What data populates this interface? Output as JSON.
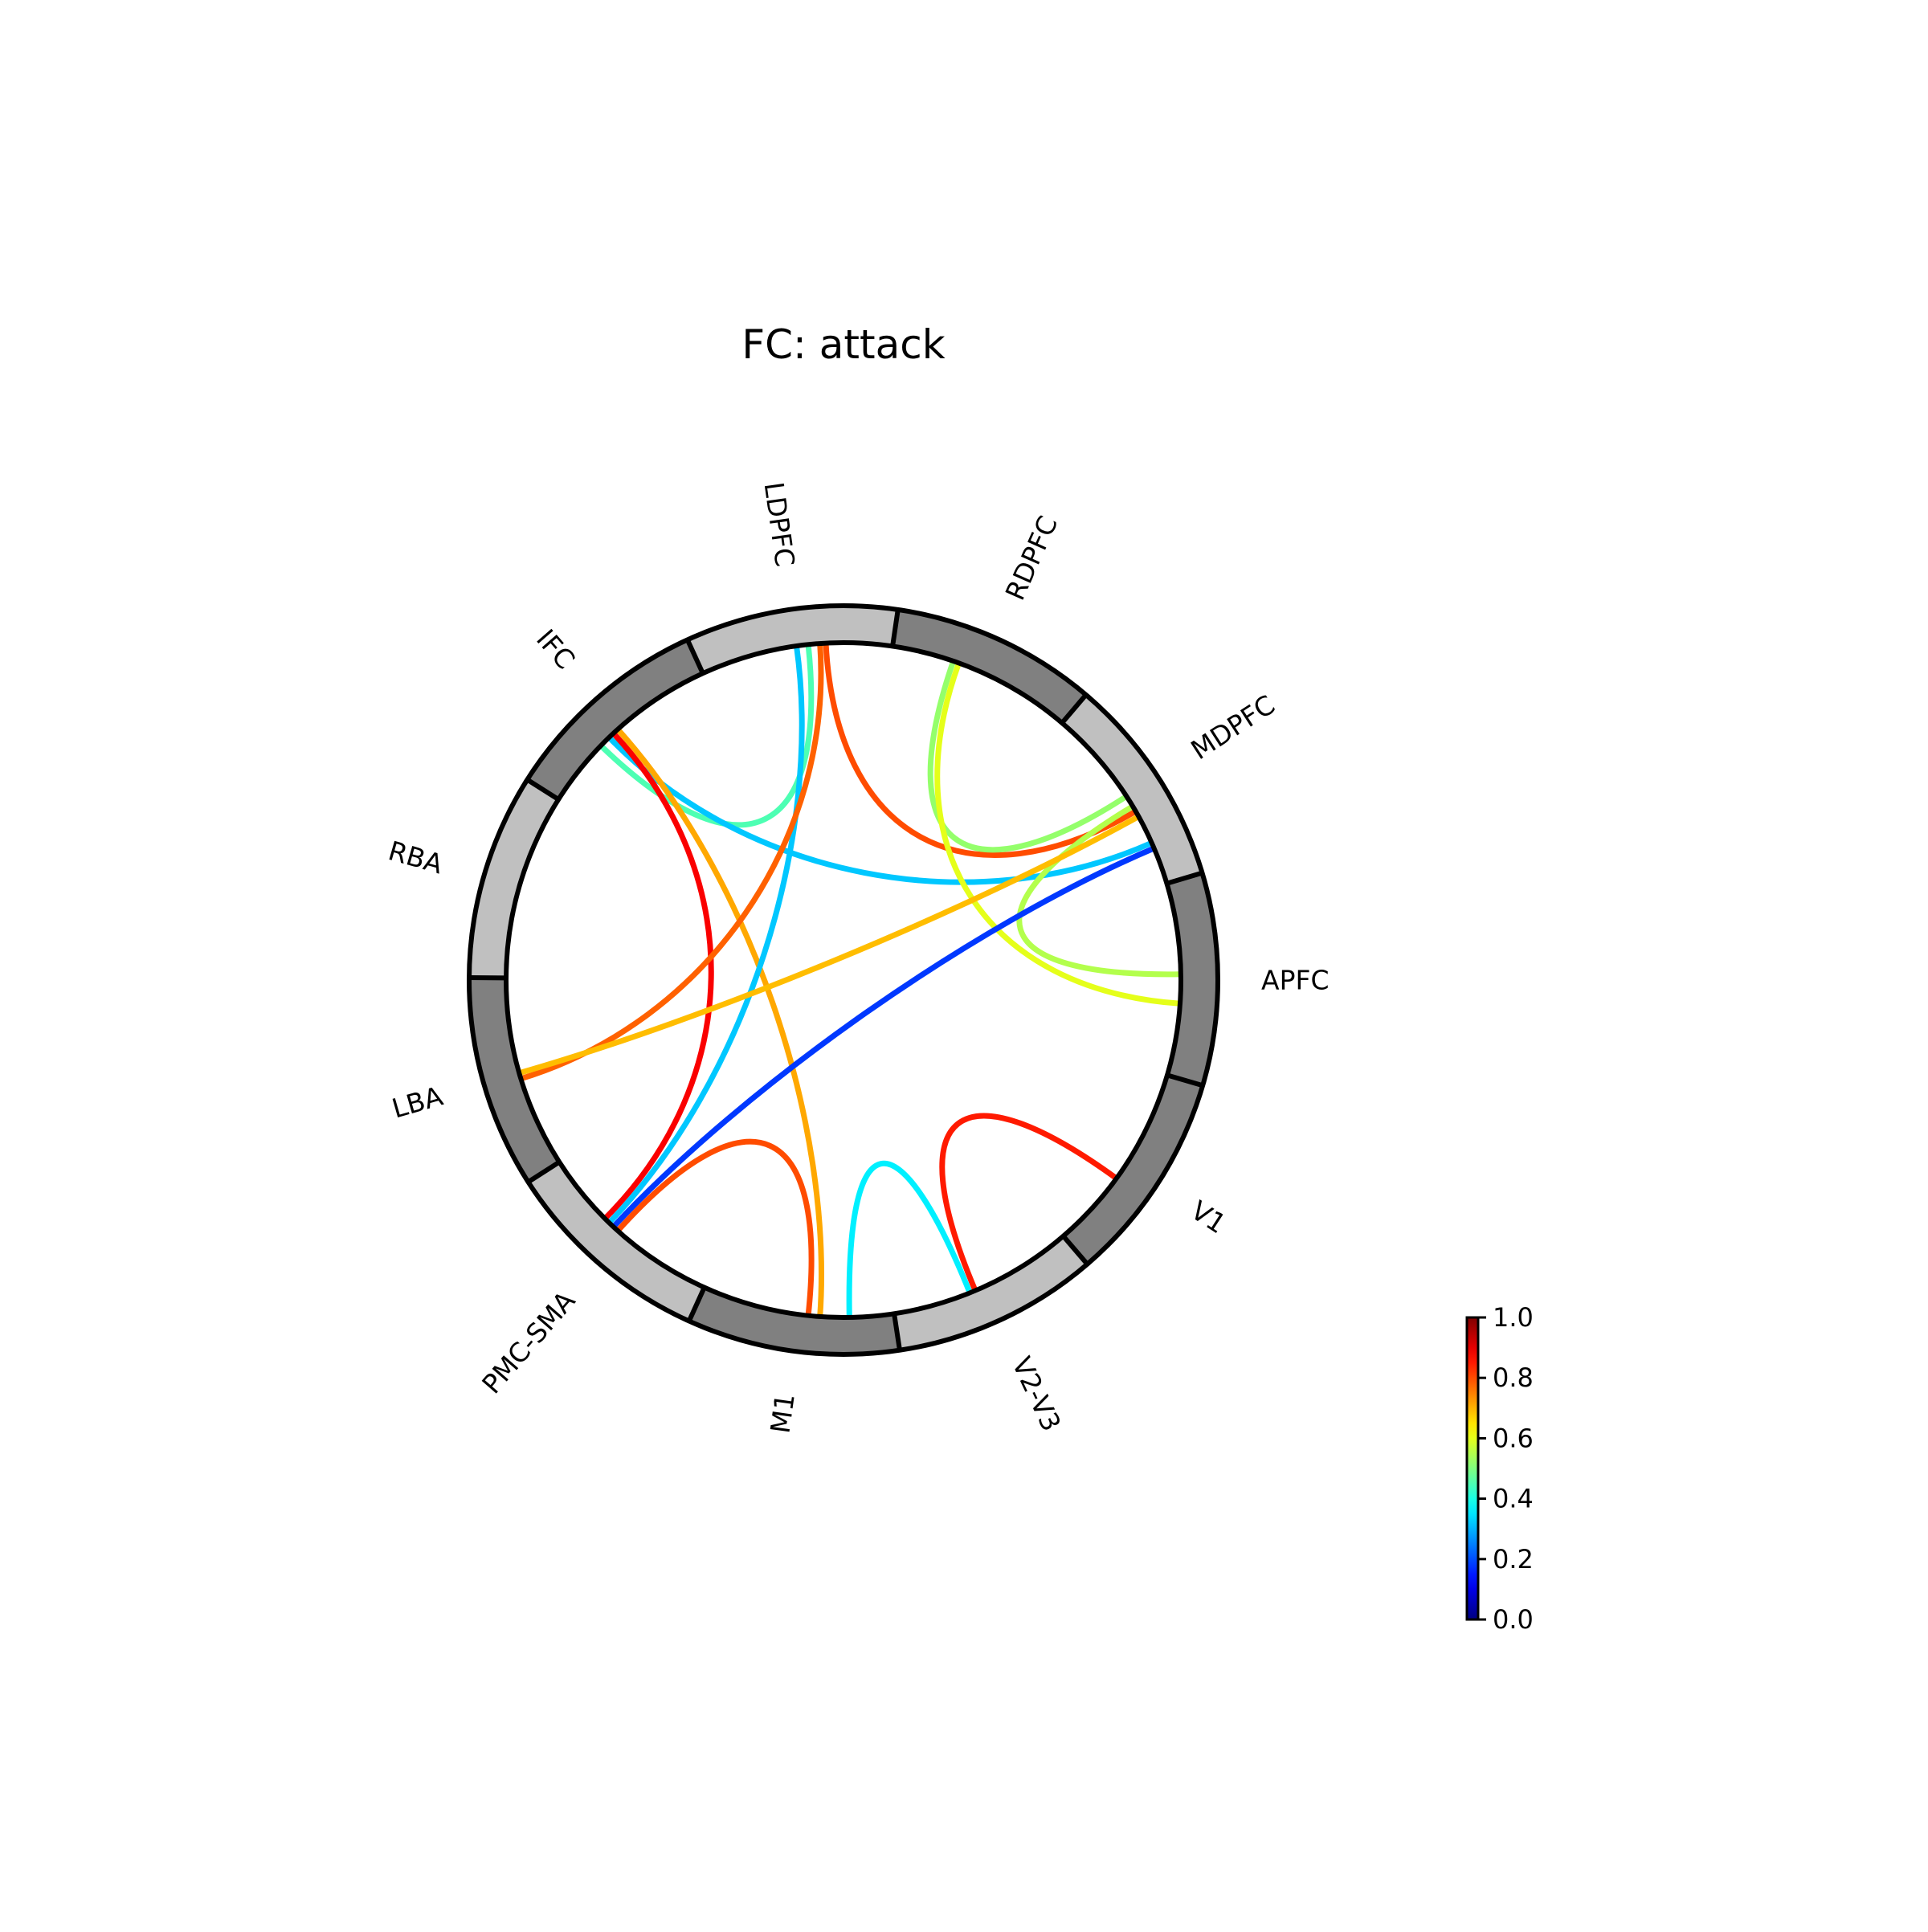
{
  "chart_data": {
    "type": "chord",
    "title": "FC: attack",
    "nodes": [
      {
        "name": "APFC",
        "angle": 0,
        "shade": "#808080"
      },
      {
        "name": "MDPFC",
        "angle": 33,
        "shade": "#c0c0c0"
      },
      {
        "name": "RDPFC",
        "angle": 66,
        "shade": "#808080"
      },
      {
        "name": "LDPFC",
        "angle": 98,
        "shade": "#c0c0c0"
      },
      {
        "name": "IFC",
        "angle": 131,
        "shade": "#808080"
      },
      {
        "name": "RBA",
        "angle": 164,
        "shade": "#c0c0c0"
      },
      {
        "name": "LBA",
        "angle": 196,
        "shade": "#808080"
      },
      {
        "name": "PMC-SMA",
        "angle": 229,
        "shade": "#c0c0c0"
      },
      {
        "name": "M1",
        "angle": 262,
        "shade": "#808080"
      },
      {
        "name": "V2-V3",
        "angle": 295,
        "shade": "#c0c0c0"
      },
      {
        "name": "V1",
        "angle": 327,
        "shade": "#808080"
      }
    ],
    "edges": [
      {
        "from": "IFC",
        "to": "LDPFC",
        "value": 0.45,
        "a1": 136,
        "a2": 96
      },
      {
        "from": "IFC",
        "to": "MDPFC",
        "value": 0.32,
        "a1": 134,
        "a2": 24
      },
      {
        "from": "IFC",
        "to": "M1",
        "value": 0.71,
        "a1": 132,
        "a2": 266
      },
      {
        "from": "IFC",
        "to": "PMC-SMA",
        "value": 0.88,
        "a1": 133,
        "a2": 225
      },
      {
        "from": "LDPFC",
        "to": "PMC-SMA",
        "value": 0.32,
        "a1": 98,
        "a2": 226
      },
      {
        "from": "LDPFC",
        "to": "LBA",
        "value": 0.78,
        "a1": 94,
        "a2": 197
      },
      {
        "from": "LDPFC",
        "to": "MDPFC",
        "value": 0.8,
        "a1": 93,
        "a2": 30
      },
      {
        "from": "RDPFC",
        "to": "MDPFC",
        "value": 0.52,
        "a1": 71,
        "a2": 33
      },
      {
        "from": "RDPFC",
        "to": "APFC",
        "value": 0.6,
        "a1": 70,
        "a2": 356
      },
      {
        "from": "MDPFC",
        "to": "APFC",
        "value": 0.55,
        "a1": 31,
        "a2": 1
      },
      {
        "from": "MDPFC",
        "to": "LBA",
        "value": 0.69,
        "a1": 29,
        "a2": 196
      },
      {
        "from": "MDPFC",
        "to": "PMC-SMA",
        "value": 0.18,
        "a1": 23,
        "a2": 227
      },
      {
        "from": "PMC-SMA",
        "to": "M1",
        "value": 0.8,
        "a1": 228,
        "a2": 264
      },
      {
        "from": "M1",
        "to": "V2-V3",
        "value": 0.36,
        "a1": 271,
        "a2": 292
      },
      {
        "from": "V2-V3",
        "to": "V1",
        "value": 0.85,
        "a1": 293,
        "a2": 324
      }
    ],
    "colorbar": {
      "label": "",
      "min": 0.0,
      "max": 1.0,
      "ticks": [
        "0.0",
        "0.2",
        "0.4",
        "0.6",
        "0.8",
        "1.0"
      ],
      "colormap": "jet"
    }
  }
}
